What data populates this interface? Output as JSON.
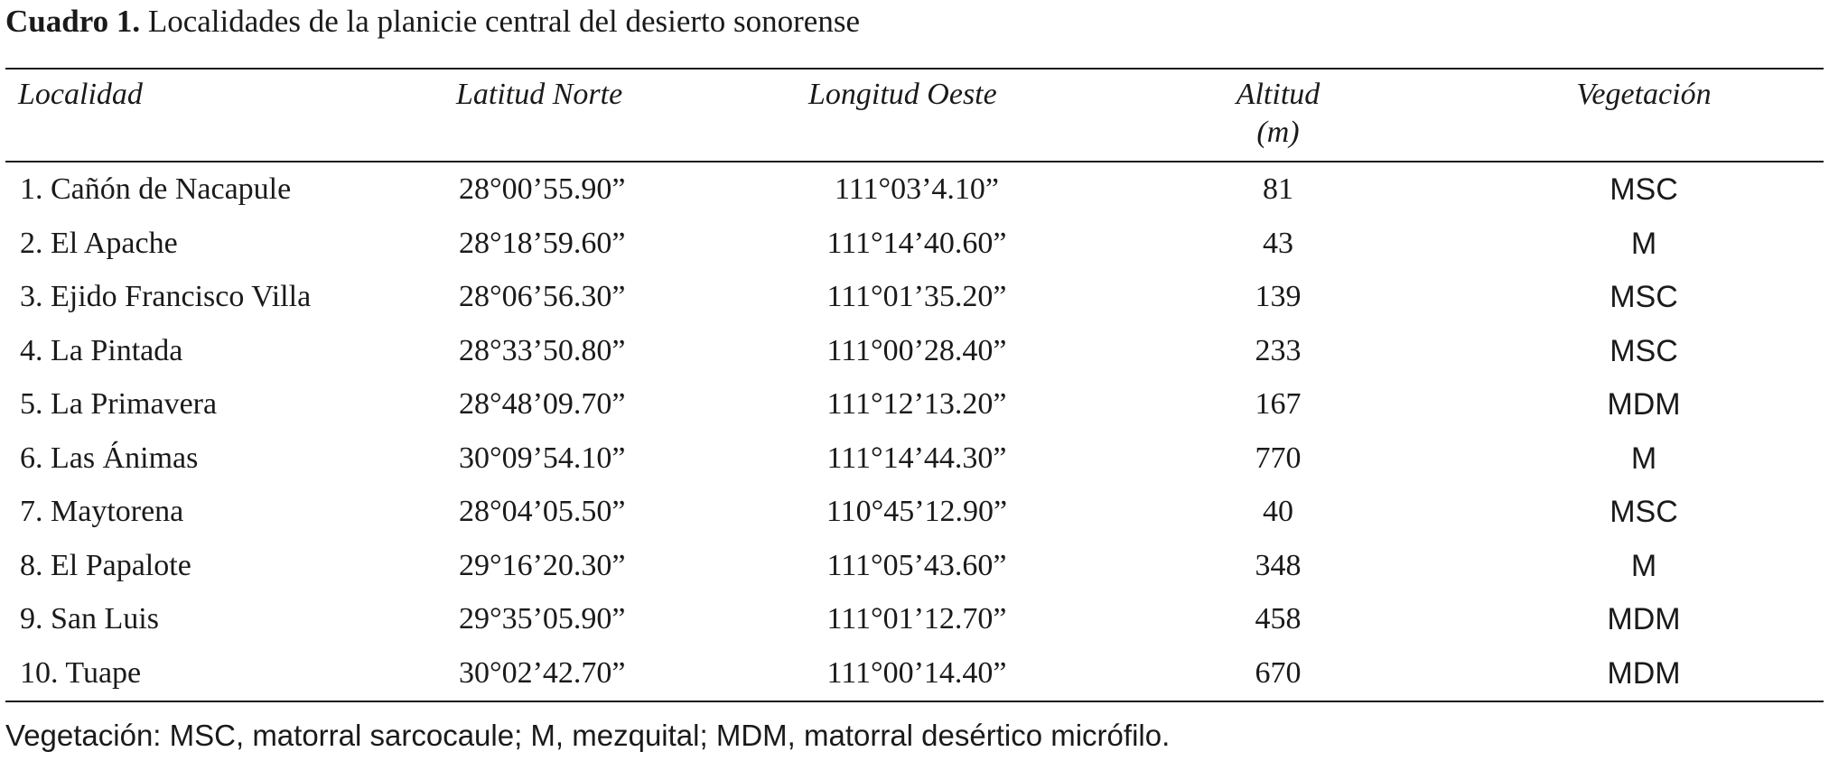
{
  "caption": {
    "label": "Cuadro 1.",
    "text": " Localidades de la planicie central del desierto sonorense"
  },
  "table": {
    "headers": {
      "localidad": "Localidad",
      "latitud": "Latitud Norte",
      "longitud": "Longitud Oeste",
      "altitud_line1": "Altitud",
      "altitud_line2": "(m)",
      "vegetacion": "Vegetación"
    },
    "rows": [
      {
        "localidad": "1. Cañón de Nacapule",
        "latitud": "28°00’55.90”",
        "longitud": "111°03’4.10”",
        "altitud": "81",
        "vegetacion": "MSC"
      },
      {
        "localidad": "2. El Apache",
        "latitud": "28°18’59.60”",
        "longitud": "111°14’40.60”",
        "altitud": "43",
        "vegetacion": "M"
      },
      {
        "localidad": "3. Ejido Francisco Villa",
        "latitud": "28°06’56.30”",
        "longitud": "111°01’35.20”",
        "altitud": "139",
        "vegetacion": "MSC"
      },
      {
        "localidad": "4. La Pintada",
        "latitud": "28°33’50.80”",
        "longitud": "111°00’28.40”",
        "altitud": "233",
        "vegetacion": "MSC"
      },
      {
        "localidad": "5. La Primavera",
        "latitud": "28°48’09.70”",
        "longitud": "111°12’13.20”",
        "altitud": "167",
        "vegetacion": "MDM"
      },
      {
        "localidad": "6. Las Ánimas",
        "latitud": "30°09’54.10”",
        "longitud": "111°14’44.30”",
        "altitud": "770",
        "vegetacion": "M"
      },
      {
        "localidad": "7. Maytorena",
        "latitud": "28°04’05.50”",
        "longitud": "110°45’12.90”",
        "altitud": "40",
        "vegetacion": "MSC"
      },
      {
        "localidad": "8. El Papalote",
        "latitud": "29°16’20.30”",
        "longitud": "111°05’43.60”",
        "altitud": "348",
        "vegetacion": "M"
      },
      {
        "localidad": "9. San Luis",
        "latitud": "29°35’05.90”",
        "longitud": "111°01’12.70”",
        "altitud": "458",
        "vegetacion": "MDM"
      },
      {
        "localidad": "10. Tuape",
        "latitud": "30°02’42.70”",
        "longitud": "111°00’14.40”",
        "altitud": "670",
        "vegetacion": "MDM"
      }
    ]
  },
  "footnote": "Vegetación: MSC, matorral sarcocaule; M, mezquital; MDM, matorral desértico micrófilo."
}
